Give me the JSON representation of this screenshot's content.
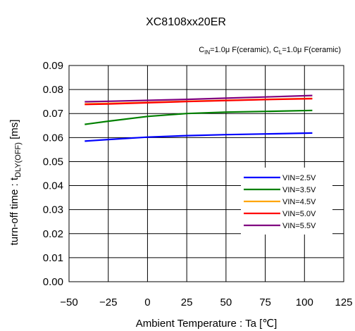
{
  "chart_data": {
    "type": "line",
    "title": "XC8108xx20ER",
    "subtitle": {
      "cin_prefix": "C",
      "cin_sub": "IN",
      "cin_value": "=1.0μ F(ceramic), ",
      "cl_prefix": "C",
      "cl_sub": "L",
      "cl_value": "=1.0μ F(ceramic)"
    },
    "xlabel": "Ambient Temperature : Ta [℃]",
    "ylabel": {
      "main": "turn-off time : t",
      "sub": "DLY(OFF)",
      "unit": " [ms]"
    },
    "xlim": [
      -50,
      125
    ],
    "ylim": [
      0,
      0.09
    ],
    "xticks": [
      "−50",
      "−25",
      "0",
      "25",
      "50",
      "75",
      "100",
      "125"
    ],
    "yticks": [
      "0.00",
      "0.01",
      "0.02",
      "0.03",
      "0.04",
      "0.05",
      "0.06",
      "0.07",
      "0.08",
      "0.09"
    ],
    "grid": true,
    "legend_position": "right",
    "x": [
      -40,
      -25,
      0,
      25,
      50,
      75,
      105
    ],
    "series": [
      {
        "name": "VIN=2.5V",
        "color": "#0000ff",
        "values": [
          0.0585,
          0.0592,
          0.0602,
          0.0608,
          0.0612,
          0.0615,
          0.0619
        ]
      },
      {
        "name": "VIN=3.5V",
        "color": "#008000",
        "values": [
          0.0655,
          0.0668,
          0.0688,
          0.07,
          0.0706,
          0.0709,
          0.0713
        ]
      },
      {
        "name": "VIN=4.5V",
        "color": "#ffa500",
        "values": [
          0.074,
          0.0742,
          0.0746,
          0.0751,
          0.0755,
          0.0759,
          0.0763
        ]
      },
      {
        "name": "VIN=5.0V",
        "color": "#ff0000",
        "values": [
          0.0738,
          0.074,
          0.0745,
          0.075,
          0.0754,
          0.0758,
          0.0762
        ]
      },
      {
        "name": "VIN=5.5V",
        "color": "#800080",
        "values": [
          0.0749,
          0.0751,
          0.0755,
          0.0759,
          0.0764,
          0.0769,
          0.0775
        ]
      }
    ]
  }
}
